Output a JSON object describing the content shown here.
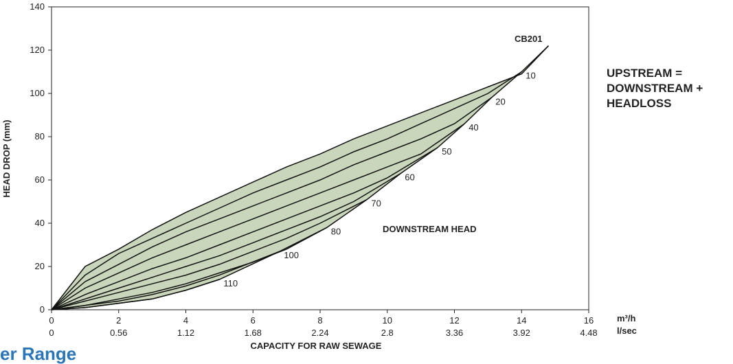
{
  "chart_data": {
    "type": "area",
    "title": "",
    "xlabel": "CAPACITY FOR RAW SEWAGE",
    "ylabel": "HEAD DROP (mm)",
    "xlim": [
      0,
      16
    ],
    "ylim": [
      0,
      140
    ],
    "x_ticks": [
      0,
      2,
      4,
      6,
      8,
      10,
      12,
      14,
      16
    ],
    "x_ticks_secondary": [
      "0",
      "0.56",
      "1.12",
      "1.68",
      "2.24",
      "2.8",
      "3.36",
      "3.92",
      "4.48"
    ],
    "x_unit_primary": "m³/h",
    "x_unit_secondary": "l/sec",
    "y_ticks": [
      0,
      20,
      40,
      60,
      80,
      100,
      120,
      140
    ],
    "grid": false,
    "fill_color": "#c9d6bb",
    "line_color": "#111111",
    "model_label": "CB201",
    "envelope_upper": [
      [
        0,
        0
      ],
      [
        1,
        20
      ],
      [
        2,
        28
      ],
      [
        3,
        37
      ],
      [
        4,
        45
      ],
      [
        5,
        52
      ],
      [
        6,
        59
      ],
      [
        7,
        66
      ],
      [
        8,
        72
      ],
      [
        9,
        79
      ],
      [
        10,
        85
      ],
      [
        11,
        91
      ],
      [
        12,
        97
      ],
      [
        13,
        103
      ],
      [
        14,
        109
      ],
      [
        14.8,
        122
      ]
    ],
    "envelope_lower": [
      [
        0,
        0
      ],
      [
        1,
        1
      ],
      [
        2,
        3
      ],
      [
        3,
        5
      ],
      [
        4,
        9
      ],
      [
        5,
        14
      ],
      [
        6.8,
        27
      ],
      [
        8.2,
        38
      ],
      [
        9.4,
        51
      ],
      [
        10.4,
        63
      ],
      [
        11.5,
        75
      ],
      [
        12.3,
        86
      ],
      [
        13.1,
        98
      ],
      [
        14,
        110
      ],
      [
        14.8,
        122
      ]
    ],
    "series": [
      {
        "name": "10",
        "values": [
          [
            0,
            0
          ],
          [
            1,
            16
          ],
          [
            2,
            26
          ],
          [
            3,
            33
          ],
          [
            4,
            40
          ],
          [
            5,
            47
          ],
          [
            6,
            54
          ],
          [
            7,
            60
          ],
          [
            8,
            66
          ],
          [
            9,
            73
          ],
          [
            10,
            79
          ],
          [
            11,
            86
          ],
          [
            12,
            93
          ],
          [
            13,
            100
          ],
          [
            14,
            110
          ]
        ]
      },
      {
        "name": "20",
        "values": [
          [
            0,
            0
          ],
          [
            1,
            13
          ],
          [
            2,
            21
          ],
          [
            3,
            29
          ],
          [
            4,
            36
          ],
          [
            5,
            42
          ],
          [
            6,
            48
          ],
          [
            7,
            54
          ],
          [
            8,
            60
          ],
          [
            9,
            67
          ],
          [
            10,
            73
          ],
          [
            11,
            79
          ],
          [
            12,
            86
          ],
          [
            13.1,
            98
          ]
        ]
      },
      {
        "name": "40",
        "values": [
          [
            0,
            0
          ],
          [
            1,
            10
          ],
          [
            2,
            17
          ],
          [
            3,
            24
          ],
          [
            4,
            30
          ],
          [
            5,
            36
          ],
          [
            6,
            42
          ],
          [
            7,
            48
          ],
          [
            8,
            54
          ],
          [
            9,
            60
          ],
          [
            10,
            66
          ],
          [
            11,
            72
          ],
          [
            12.3,
            86
          ]
        ]
      },
      {
        "name": "50",
        "values": [
          [
            0,
            0
          ],
          [
            1,
            7
          ],
          [
            2,
            13
          ],
          [
            3,
            19
          ],
          [
            4,
            24
          ],
          [
            5,
            30
          ],
          [
            6,
            36
          ],
          [
            7,
            42
          ],
          [
            8,
            48
          ],
          [
            9,
            54
          ],
          [
            10,
            61
          ],
          [
            11.5,
            75
          ]
        ]
      },
      {
        "name": "60",
        "values": [
          [
            0,
            0
          ],
          [
            1,
            5
          ],
          [
            2,
            10
          ],
          [
            3,
            15
          ],
          [
            4,
            20
          ],
          [
            5,
            25
          ],
          [
            6,
            31
          ],
          [
            7,
            37
          ],
          [
            8,
            43
          ],
          [
            9,
            50
          ],
          [
            10.4,
            63
          ]
        ]
      },
      {
        "name": "70",
        "values": [
          [
            0,
            0
          ],
          [
            1,
            4
          ],
          [
            2,
            8
          ],
          [
            3,
            12
          ],
          [
            4,
            16
          ],
          [
            5,
            21
          ],
          [
            6,
            27
          ],
          [
            7,
            33
          ],
          [
            8,
            40
          ],
          [
            9.4,
            51
          ]
        ]
      },
      {
        "name": "80",
        "values": [
          [
            0,
            0
          ],
          [
            1,
            2
          ],
          [
            2,
            5
          ],
          [
            3,
            8
          ],
          [
            4,
            12
          ],
          [
            5,
            17
          ],
          [
            6,
            22
          ],
          [
            7,
            28
          ],
          [
            8.2,
            38
          ]
        ]
      },
      {
        "name": "100",
        "values": [
          [
            0,
            0
          ],
          [
            1,
            2
          ],
          [
            2,
            4
          ],
          [
            3,
            7
          ],
          [
            4,
            11
          ],
          [
            5,
            16
          ],
          [
            6.8,
            27
          ]
        ]
      },
      {
        "name": "110",
        "values": [
          [
            0,
            0
          ],
          [
            1,
            1
          ],
          [
            2,
            3
          ],
          [
            3,
            5
          ],
          [
            4,
            9
          ],
          [
            5,
            14
          ]
        ]
      }
    ],
    "annotation": "DOWNSTREAM HEAD"
  },
  "note": "UPSTREAM =\nDOWNSTREAM +\nHEADLOSS",
  "footer_title": "er Range"
}
